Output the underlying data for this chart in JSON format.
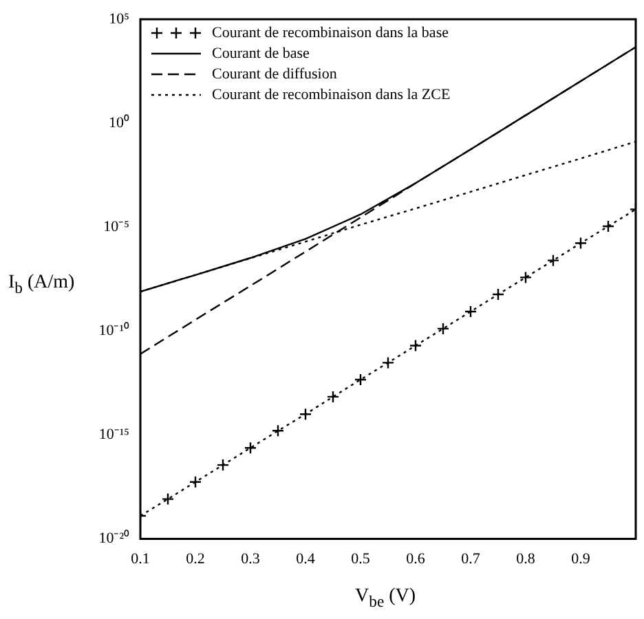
{
  "chart_data": {
    "type": "line",
    "xlabel": "V$_{be}$ (V)",
    "ylabel": "I$_{b}$ (A/m)",
    "log": "y",
    "grid": false,
    "legend": "top left",
    "xlim": [
      0.1,
      1.0
    ],
    "xticks": [
      0.1,
      0.2,
      0.3,
      0.4,
      0.5,
      0.6,
      0.7,
      0.8,
      0.9
    ],
    "ylim": [
      1e-20,
      100000.0
    ],
    "yticks": [
      {
        "value": 1e-20,
        "label": "10⁻²⁰"
      },
      {
        "value": 1e-15,
        "label": "10⁻¹⁵"
      },
      {
        "value": 1e-10,
        "label": "10⁻¹⁰"
      },
      {
        "value": 1e-05,
        "label": "10⁻⁵"
      },
      {
        "value": 1,
        "label": "10⁰"
      },
      {
        "value": 100000.0,
        "label": "10⁵"
      }
    ],
    "series": [
      {
        "name": "Courant de recombinaison dans la base",
        "color": "#000000",
        "marker": "cross",
        "line_style": "dotted",
        "x": [
          0.1,
          0.15,
          0.2,
          0.25,
          0.3,
          0.35,
          0.4,
          0.45,
          0.5,
          0.55,
          0.6,
          0.65,
          0.7,
          0.75,
          0.8,
          0.85,
          0.9,
          0.95,
          1.0
        ],
        "values": [
          1.3e-19,
          8.3e-19,
          5.5e-18,
          3.6e-17,
          2.4e-16,
          1.6e-15,
          1e-14,
          6.9e-14,
          4.6e-13,
          3e-12,
          2e-11,
          1.3e-10,
          8.7e-10,
          5.8e-09,
          3.8e-08,
          2.5e-07,
          1.7e-06,
          1.1e-05,
          7.2e-05
        ]
      },
      {
        "name": "Courant de base",
        "color": "#000000",
        "marker": "none",
        "line_style": "solid",
        "x": [
          0.1,
          0.2,
          0.3,
          0.4,
          0.5,
          0.6,
          0.7,
          0.8,
          0.9,
          1.0
        ],
        "values": [
          7.9e-09,
          5e-08,
          3.3e-07,
          2.7e-06,
          4.1e-05,
          0.0013,
          0.055,
          2.4,
          105,
          4600
        ]
      },
      {
        "name": "Courant de diffusion",
        "color": "#000000",
        "marker": "none",
        "line_style": "dashed",
        "x": [
          0.1,
          0.2,
          0.3,
          0.4,
          0.5,
          0.6,
          0.7,
          0.8,
          0.9,
          1.0
        ],
        "values": [
          7.9e-12,
          3.5e-10,
          1.5e-08,
          6.6e-07,
          2.9e-05,
          0.0013,
          0.055,
          2.4,
          105,
          4600
        ]
      },
      {
        "name": "Courant de recombinaison dans la ZCE",
        "color": "#000000",
        "marker": "none",
        "line_style": "dotted",
        "x": [
          0.1,
          0.2,
          0.3,
          0.4,
          0.5,
          0.6,
          0.7,
          0.8,
          0.9,
          1.0
        ],
        "values": [
          7.9e-09,
          5e-08,
          3.2e-07,
          2e-06,
          1.3e-05,
          7.9e-05,
          0.0005,
          0.0032,
          0.02,
          0.13
        ]
      }
    ]
  }
}
